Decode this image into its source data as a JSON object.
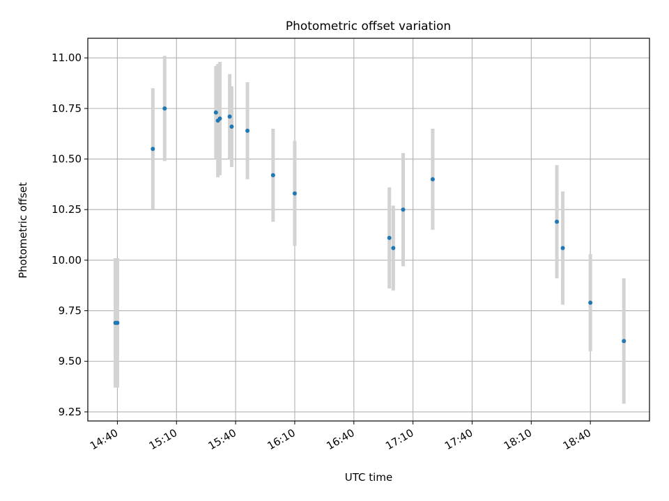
{
  "chart_data": {
    "type": "scatter",
    "title": "Photometric offset variation",
    "xlabel": "UTC time",
    "ylabel": "Photometric offset",
    "grid": true,
    "x_tick_labels": [
      "14:40",
      "15:10",
      "15:40",
      "16:10",
      "16:40",
      "17:10",
      "17:40",
      "18:10",
      "18:40"
    ],
    "y_tick_labels": [
      "9.25",
      "9.50",
      "9.75",
      "10.00",
      "10.25",
      "10.50",
      "10.75",
      "11.00"
    ],
    "xlim": [
      "14:25",
      "19:10"
    ],
    "ylim": [
      9.205,
      11.097
    ],
    "errorbar_color": "#d3d3d3",
    "marker_color": "#1f77b4",
    "points": [
      {
        "x": "14:39",
        "y": 9.69,
        "err": 0.32
      },
      {
        "x": "14:40",
        "y": 9.69,
        "err": 0.32
      },
      {
        "x": "14:58",
        "y": 10.55,
        "err": 0.3
      },
      {
        "x": "15:04",
        "y": 10.75,
        "err": 0.26
      },
      {
        "x": "15:30",
        "y": 10.73,
        "err": 0.23
      },
      {
        "x": "15:31",
        "y": 10.69,
        "err": 0.28
      },
      {
        "x": "15:32",
        "y": 10.7,
        "err": 0.28
      },
      {
        "x": "15:37",
        "y": 10.71,
        "err": 0.21
      },
      {
        "x": "15:38",
        "y": 10.66,
        "err": 0.2
      },
      {
        "x": "15:46",
        "y": 10.64,
        "err": 0.24
      },
      {
        "x": "15:59",
        "y": 10.42,
        "err": 0.23
      },
      {
        "x": "16:10",
        "y": 10.33,
        "err": 0.26
      },
      {
        "x": "16:58",
        "y": 10.11,
        "err": 0.25
      },
      {
        "x": "17:00",
        "y": 10.06,
        "err": 0.21
      },
      {
        "x": "17:05",
        "y": 10.25,
        "err": 0.28
      },
      {
        "x": "17:20",
        "y": 10.4,
        "err": 0.25
      },
      {
        "x": "18:23",
        "y": 10.19,
        "err": 0.28
      },
      {
        "x": "18:26",
        "y": 10.06,
        "err": 0.28
      },
      {
        "x": "18:40",
        "y": 9.79,
        "err": 0.24
      },
      {
        "x": "18:57",
        "y": 9.6,
        "err": 0.31
      }
    ]
  }
}
